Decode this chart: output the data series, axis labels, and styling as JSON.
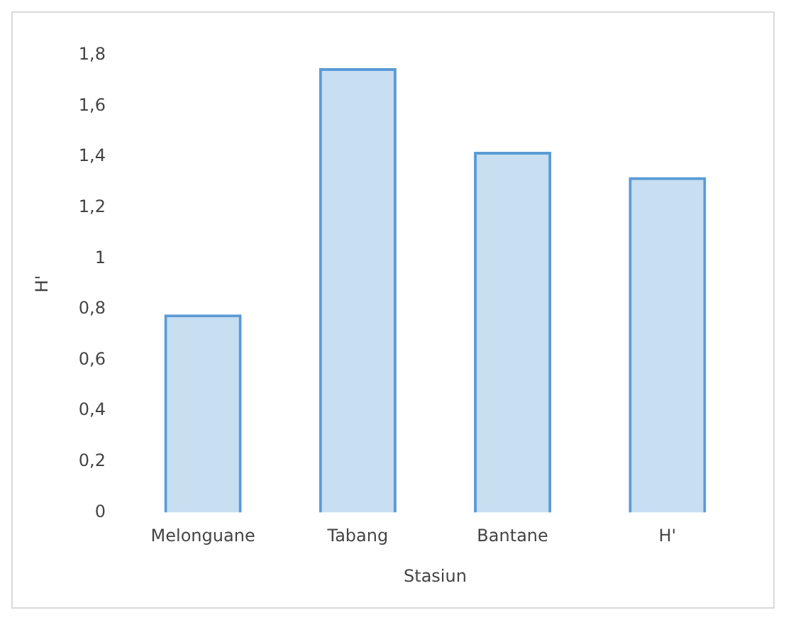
{
  "chart_data": {
    "type": "bar",
    "xlabel": "Stasiun",
    "ylabel": "H'",
    "categories": [
      "Melonguane",
      "Tabang",
      "Bantane",
      "H'"
    ],
    "values": [
      0.78,
      1.75,
      1.42,
      1.32
    ],
    "color": "#5b9bd5",
    "ylim": [
      0,
      1.8
    ],
    "yticks": [
      0,
      {
        "value": 0.2,
        "label": "0,2"
      },
      {
        "value": 0.4,
        "label": "0,4"
      },
      {
        "value": 0.6,
        "label": "0,6"
      },
      {
        "value": 0.8,
        "label": "0,8"
      },
      1,
      {
        "value": 1.2,
        "label": "1,2"
      },
      {
        "value": 1.4,
        "label": "1,4"
      },
      {
        "value": 1.6,
        "label": "1,6"
      },
      {
        "value": 1.8,
        "label": "1,8"
      }
    ],
    "grid": false,
    "legend": false
  }
}
